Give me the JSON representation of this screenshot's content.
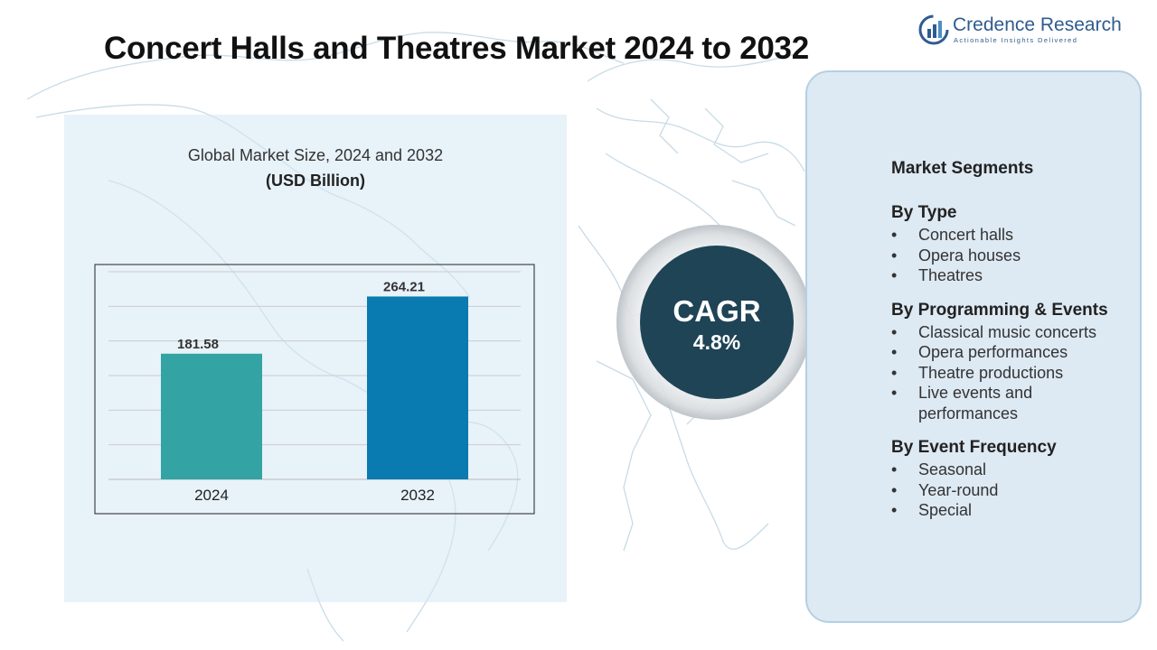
{
  "header": {
    "title": "Concert Halls and Theatres Market 2024 to 2032"
  },
  "logo": {
    "name": "Credence Research",
    "tagline": "Actionable Insights Delivered",
    "icon": "bar-chart-logo-icon"
  },
  "chart_panel": {
    "title": "Global Market Size, 2024 and 2032",
    "unit": "(USD Billion)"
  },
  "chart_data": {
    "type": "bar",
    "categories": [
      "2024",
      "2032"
    ],
    "values": [
      181.58,
      264.21
    ],
    "data_labels": [
      "181.58",
      "264.21"
    ],
    "colors": [
      "#33a3a3",
      "#0a7bb0"
    ],
    "title": "Global Market Size, 2024 and 2032",
    "ylabel": "(USD Billion)",
    "ylim": [
      0,
      300
    ],
    "grid": true,
    "legend": "none"
  },
  "cagr": {
    "label": "CAGR",
    "value": "4.8%",
    "color": "#1e4456"
  },
  "segments": {
    "heading": "Market Segments",
    "groups": [
      {
        "title": "By Type",
        "items": [
          "Concert halls",
          "Opera houses",
          "Theatres"
        ]
      },
      {
        "title": "By Programming & Events",
        "items": [
          "Classical music concerts",
          "Opera performances",
          "Theatre productions",
          "Live events and",
          "performances"
        ]
      },
      {
        "title": "By Event Frequency",
        "items": [
          "Seasonal",
          "Year-round",
          "Special"
        ]
      }
    ]
  },
  "colors": {
    "panel_bg": "#dde9f3",
    "panel_border": "#b4d0e3",
    "map_lines": "#c8dbe7"
  }
}
